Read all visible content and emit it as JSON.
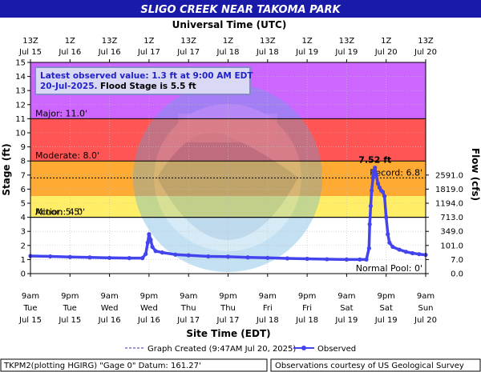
{
  "chart_data": {
    "type": "line",
    "title": "SLIGO CREEK NEAR TAKOMA PARK",
    "x_axis_top_title": "Universal Time (UTC)",
    "x_axis_bottom_title": "Site Time (EDT)",
    "y_left_title": "Stage (ft)",
    "y_right_title": "Flow (cfs)",
    "ylim": [
      0,
      15
    ],
    "y_ticks": [
      0,
      1,
      2,
      3,
      4,
      5,
      6,
      7,
      8,
      9,
      10,
      11,
      12,
      13,
      14,
      15
    ],
    "xlim_hours": [
      0,
      120
    ],
    "x_time_start": "2025-07-15T09:00 EDT",
    "utc_ticks": [
      {
        "h": 0,
        "t": "13Z",
        "d": "Jul 15"
      },
      {
        "h": 12,
        "t": "1Z",
        "d": "Jul 16"
      },
      {
        "h": 24,
        "t": "13Z",
        "d": "Jul 16"
      },
      {
        "h": 36,
        "t": "1Z",
        "d": "Jul 17"
      },
      {
        "h": 48,
        "t": "13Z",
        "d": "Jul 17"
      },
      {
        "h": 60,
        "t": "1Z",
        "d": "Jul 18"
      },
      {
        "h": 72,
        "t": "13Z",
        "d": "Jul 18"
      },
      {
        "h": 84,
        "t": "1Z",
        "d": "Jul 19"
      },
      {
        "h": 96,
        "t": "13Z",
        "d": "Jul 19"
      },
      {
        "h": 108,
        "t": "1Z",
        "d": "Jul 20"
      },
      {
        "h": 120,
        "t": "13Z",
        "d": "Jul 20"
      }
    ],
    "edt_ticks": [
      {
        "h": 0,
        "t": "9am",
        "w": "Tue",
        "d": "Jul 15"
      },
      {
        "h": 12,
        "t": "9pm",
        "w": "Tue",
        "d": "Jul 15"
      },
      {
        "h": 24,
        "t": "9am",
        "w": "Wed",
        "d": "Jul 16"
      },
      {
        "h": 36,
        "t": "9pm",
        "w": "Wed",
        "d": "Jul 16"
      },
      {
        "h": 48,
        "t": "9am",
        "w": "Thu",
        "d": "Jul 17"
      },
      {
        "h": 60,
        "t": "9pm",
        "w": "Thu",
        "d": "Jul 17"
      },
      {
        "h": 72,
        "t": "9am",
        "w": "Fri",
        "d": "Jul 18"
      },
      {
        "h": 84,
        "t": "9pm",
        "w": "Fri",
        "d": "Jul 18"
      },
      {
        "h": 96,
        "t": "9am",
        "w": "Sat",
        "d": "Jul 19"
      },
      {
        "h": 108,
        "t": "9pm",
        "w": "Sat",
        "d": "Jul 19"
      },
      {
        "h": 120,
        "t": "9am",
        "w": "Sun",
        "d": "Jul 20"
      }
    ],
    "flow_ticks": [
      {
        "stage": 0,
        "label": "0.0"
      },
      {
        "stage": 1,
        "label": "7.0"
      },
      {
        "stage": 2,
        "label": "101.0"
      },
      {
        "stage": 3,
        "label": "349.0"
      },
      {
        "stage": 4,
        "label": "713.0"
      },
      {
        "stage": 5,
        "label": "1194.0"
      },
      {
        "stage": 6,
        "label": "1819.0"
      },
      {
        "stage": 7,
        "label": "2591.0"
      }
    ],
    "flood_categories": [
      {
        "name": "Major",
        "label": "Major: 11.0'",
        "from": 11,
        "to": 15,
        "color": "#cc66ff"
      },
      {
        "name": "Moderate",
        "label": "Moderate: 8.0'",
        "from": 8,
        "to": 11,
        "color": "#ff5555"
      },
      {
        "name": "Flood",
        "label": "",
        "from": 5.5,
        "to": 8,
        "color": "#ffaa33"
      },
      {
        "name": "Minor",
        "label": "Minor: 5.5'",
        "from": 4,
        "to": 5.5,
        "color": "#ffee66"
      },
      {
        "name": "Action",
        "label": "Action: 4.0'",
        "from": 4,
        "to": 4,
        "color": "#ffee66"
      }
    ],
    "record_label": "Record: 6.8'",
    "record_stage": 6.8,
    "normal_pool_label": "Normal Pool: 0'",
    "peak_label": "7.52 ft",
    "peak": {
      "h": 104.6,
      "y": 7.52
    },
    "series": [
      {
        "name": "Observed",
        "color": "#4444ee",
        "x": [
          0,
          6,
          12,
          18,
          24,
          30,
          34,
          35,
          35.6,
          36,
          36.5,
          37,
          38,
          40,
          44,
          48,
          54,
          60,
          66,
          72,
          78,
          84,
          90,
          96,
          100,
          102,
          102.8,
          103,
          103.3,
          103.6,
          104,
          104.3,
          104.6,
          105,
          105.5,
          106,
          106.5,
          107,
          107.5,
          108,
          108.5,
          109,
          110,
          112,
          114,
          116,
          118,
          120
        ],
        "y": [
          1.25,
          1.22,
          1.18,
          1.15,
          1.12,
          1.1,
          1.1,
          1.4,
          2.2,
          2.8,
          2.4,
          1.9,
          1.6,
          1.5,
          1.35,
          1.3,
          1.22,
          1.2,
          1.15,
          1.12,
          1.08,
          1.05,
          1.02,
          1.0,
          1.0,
          1.0,
          1.8,
          3.5,
          4.8,
          5.9,
          6.8,
          7.3,
          7.52,
          7.0,
          6.4,
          6.1,
          5.9,
          5.8,
          5.5,
          4.0,
          2.8,
          2.2,
          1.9,
          1.7,
          1.55,
          1.45,
          1.38,
          1.33
        ]
      }
    ]
  },
  "header": {
    "title": "SLIGO CREEK NEAR TAKOMA PARK"
  },
  "annotation_box": {
    "line1": "Latest observed value: 1.3 ft at 9:00 AM EDT",
    "line2_date": "20-Jul-2025.",
    "line2_flood": "Flood Stage is 5.5 ft"
  },
  "legend": {
    "graph_created": "Graph Created (9:47AM Jul 20, 2025)",
    "observed": "Observed"
  },
  "footer": {
    "left": "TKPM2(plotting HGIRG) \"Gage 0\" Datum: 161.27'",
    "right": "Observations courtesy of US Geological Survey"
  },
  "colors": {
    "title_bg": "#1a1aa8",
    "title_fg": "#ffffff",
    "plot_bg": "#ffffff",
    "observed": "#4444ee",
    "annotation_bg": "#d9d9f5",
    "annotation_border": "#8888cc",
    "annotation_text": "#2222cc",
    "peak_text": "#4444ee"
  },
  "icons": {
    "watermark": "noaa-seal-icon"
  }
}
